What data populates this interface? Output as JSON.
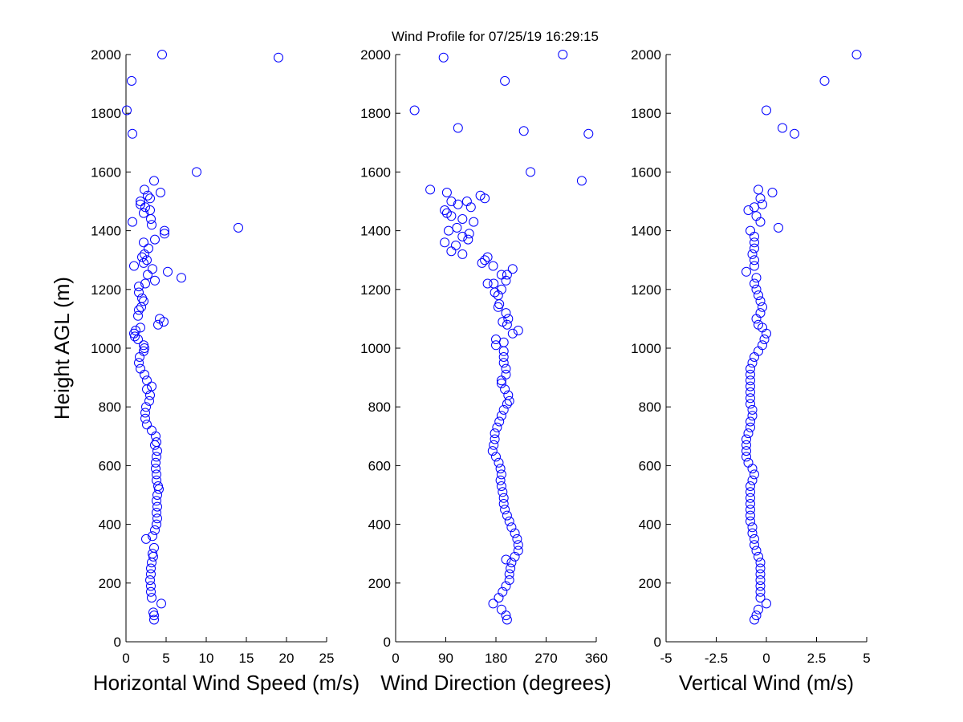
{
  "title": "Wind Profile for  07/25/19 16:29:15",
  "ylabel": "Height AGL (m)",
  "chart_data": [
    {
      "type": "scatter",
      "name": "horizontal-wind-speed",
      "xlabel": "Horizontal Wind Speed (m/s)",
      "ylabel": "Height AGL (m)",
      "xlim": [
        0,
        25
      ],
      "ylim": [
        0,
        2000
      ],
      "xticks": [
        0,
        5,
        10,
        15,
        20,
        25
      ],
      "xtick_labels": [
        "0",
        "5",
        "10",
        "15",
        "20",
        "25"
      ],
      "yticks": [
        0,
        200,
        400,
        600,
        800,
        1000,
        1200,
        1400,
        1600,
        1800,
        2000
      ],
      "ytick_labels": [
        "0",
        "200",
        "400",
        "600",
        "800",
        "1000",
        "1200",
        "1400",
        "1600",
        "1800",
        "2000"
      ],
      "marker": "open-circle",
      "color": "#0000ff",
      "grid": false,
      "points": [
        [
          3.5,
          75
        ],
        [
          3.5,
          90
        ],
        [
          3.4,
          100
        ],
        [
          4.4,
          130
        ],
        [
          3.2,
          150
        ],
        [
          3.1,
          170
        ],
        [
          3.1,
          190
        ],
        [
          3.0,
          210
        ],
        [
          3.1,
          230
        ],
        [
          3.1,
          250
        ],
        [
          3.2,
          270
        ],
        [
          3.4,
          290
        ],
        [
          3.3,
          300
        ],
        [
          3.5,
          320
        ],
        [
          2.5,
          350
        ],
        [
          3.3,
          360
        ],
        [
          3.6,
          380
        ],
        [
          3.8,
          400
        ],
        [
          3.9,
          420
        ],
        [
          3.8,
          440
        ],
        [
          3.9,
          460
        ],
        [
          3.8,
          480
        ],
        [
          3.9,
          500
        ],
        [
          4.1,
          520
        ],
        [
          4.0,
          530
        ],
        [
          3.8,
          550
        ],
        [
          3.8,
          570
        ],
        [
          3.7,
          590
        ],
        [
          3.7,
          610
        ],
        [
          3.8,
          630
        ],
        [
          3.9,
          650
        ],
        [
          3.6,
          670
        ],
        [
          3.8,
          680
        ],
        [
          3.7,
          700
        ],
        [
          3.2,
          720
        ],
        [
          2.6,
          740
        ],
        [
          2.4,
          760
        ],
        [
          2.4,
          780
        ],
        [
          2.5,
          800
        ],
        [
          2.9,
          820
        ],
        [
          3.0,
          840
        ],
        [
          2.6,
          860
        ],
        [
          3.2,
          870
        ],
        [
          2.6,
          890
        ],
        [
          2.3,
          910
        ],
        [
          1.8,
          930
        ],
        [
          1.6,
          950
        ],
        [
          1.7,
          970
        ],
        [
          2.2,
          990
        ],
        [
          2.3,
          1000
        ],
        [
          2.2,
          1010
        ],
        [
          1.5,
          1030
        ],
        [
          1.1,
          1040
        ],
        [
          1.0,
          1050
        ],
        [
          1.2,
          1060
        ],
        [
          1.8,
          1070
        ],
        [
          4.0,
          1080
        ],
        [
          4.7,
          1090
        ],
        [
          4.2,
          1100
        ],
        [
          1.5,
          1110
        ],
        [
          1.6,
          1130
        ],
        [
          1.9,
          1140
        ],
        [
          2.2,
          1160
        ],
        [
          2.0,
          1170
        ],
        [
          1.6,
          1190
        ],
        [
          1.6,
          1210
        ],
        [
          2.4,
          1220
        ],
        [
          3.6,
          1230
        ],
        [
          6.9,
          1240
        ],
        [
          2.7,
          1250
        ],
        [
          5.2,
          1260
        ],
        [
          3.3,
          1270
        ],
        [
          1.0,
          1280
        ],
        [
          2.2,
          1290
        ],
        [
          2.6,
          1300
        ],
        [
          2.0,
          1310
        ],
        [
          2.3,
          1320
        ],
        [
          2.8,
          1340
        ],
        [
          2.2,
          1360
        ],
        [
          3.6,
          1370
        ],
        [
          4.8,
          1390
        ],
        [
          4.8,
          1400
        ],
        [
          14.0,
          1410
        ],
        [
          3.2,
          1420
        ],
        [
          0.8,
          1430
        ],
        [
          3.1,
          1440
        ],
        [
          2.2,
          1460
        ],
        [
          3.0,
          1470
        ],
        [
          2.4,
          1480
        ],
        [
          1.8,
          1490
        ],
        [
          1.8,
          1500
        ],
        [
          3.0,
          1510
        ],
        [
          2.7,
          1520
        ],
        [
          4.3,
          1530
        ],
        [
          2.3,
          1540
        ],
        [
          3.5,
          1570
        ],
        [
          8.8,
          1600
        ],
        [
          0.8,
          1730
        ],
        [
          0.1,
          1810
        ],
        [
          0.7,
          1910
        ],
        [
          19.0,
          1990
        ],
        [
          4.5,
          2000
        ]
      ]
    },
    {
      "type": "scatter",
      "name": "wind-direction",
      "xlabel": "Wind Direction (degrees)",
      "ylabel": "",
      "xlim": [
        0,
        360
      ],
      "ylim": [
        0,
        2000
      ],
      "xticks": [
        0,
        90,
        180,
        270,
        360
      ],
      "xtick_labels": [
        "0",
        "90",
        "180",
        "270",
        "360"
      ],
      "yticks": [
        0,
        200,
        400,
        600,
        800,
        1000,
        1200,
        1400,
        1600,
        1800,
        2000
      ],
      "ytick_labels": [
        "0",
        "200",
        "400",
        "600",
        "800",
        "1000",
        "1200",
        "1400",
        "1600",
        "1800",
        "2000"
      ],
      "marker": "open-circle",
      "color": "#0000ff",
      "grid": false,
      "points": [
        [
          200,
          75
        ],
        [
          198,
          90
        ],
        [
          190,
          110
        ],
        [
          175,
          130
        ],
        [
          185,
          150
        ],
        [
          192,
          170
        ],
        [
          198,
          190
        ],
        [
          204,
          210
        ],
        [
          204,
          230
        ],
        [
          206,
          250
        ],
        [
          208,
          270
        ],
        [
          198,
          280
        ],
        [
          214,
          290
        ],
        [
          220,
          310
        ],
        [
          220,
          330
        ],
        [
          218,
          350
        ],
        [
          214,
          370
        ],
        [
          208,
          390
        ],
        [
          204,
          410
        ],
        [
          200,
          430
        ],
        [
          196,
          450
        ],
        [
          194,
          470
        ],
        [
          194,
          490
        ],
        [
          192,
          510
        ],
        [
          190,
          530
        ],
        [
          188,
          550
        ],
        [
          190,
          570
        ],
        [
          188,
          590
        ],
        [
          185,
          610
        ],
        [
          180,
          630
        ],
        [
          174,
          650
        ],
        [
          176,
          670
        ],
        [
          178,
          690
        ],
        [
          178,
          710
        ],
        [
          182,
          730
        ],
        [
          186,
          750
        ],
        [
          190,
          770
        ],
        [
          194,
          790
        ],
        [
          200,
          810
        ],
        [
          204,
          820
        ],
        [
          202,
          840
        ],
        [
          196,
          860
        ],
        [
          190,
          880
        ],
        [
          190,
          890
        ],
        [
          198,
          910
        ],
        [
          198,
          930
        ],
        [
          194,
          950
        ],
        [
          194,
          970
        ],
        [
          194,
          990
        ],
        [
          180,
          1010
        ],
        [
          194,
          1020
        ],
        [
          180,
          1030
        ],
        [
          210,
          1050
        ],
        [
          220,
          1060
        ],
        [
          200,
          1080
        ],
        [
          192,
          1090
        ],
        [
          202,
          1100
        ],
        [
          198,
          1120
        ],
        [
          184,
          1140
        ],
        [
          186,
          1150
        ],
        [
          184,
          1180
        ],
        [
          178,
          1190
        ],
        [
          190,
          1200
        ],
        [
          176,
          1220
        ],
        [
          165,
          1220
        ],
        [
          198,
          1230
        ],
        [
          190,
          1250
        ],
        [
          200,
          1250
        ],
        [
          210,
          1270
        ],
        [
          175,
          1280
        ],
        [
          155,
          1290
        ],
        [
          160,
          1300
        ],
        [
          165,
          1310
        ],
        [
          120,
          1320
        ],
        [
          100,
          1330
        ],
        [
          108,
          1350
        ],
        [
          88,
          1360
        ],
        [
          130,
          1370
        ],
        [
          120,
          1380
        ],
        [
          132,
          1390
        ],
        [
          95,
          1400
        ],
        [
          110,
          1410
        ],
        [
          140,
          1430
        ],
        [
          120,
          1440
        ],
        [
          100,
          1450
        ],
        [
          92,
          1460
        ],
        [
          88,
          1470
        ],
        [
          135,
          1480
        ],
        [
          112,
          1490
        ],
        [
          100,
          1500
        ],
        [
          128,
          1500
        ],
        [
          160,
          1510
        ],
        [
          152,
          1520
        ],
        [
          92,
          1530
        ],
        [
          62,
          1540
        ],
        [
          334,
          1570
        ],
        [
          242,
          1600
        ],
        [
          346,
          1730
        ],
        [
          230,
          1740
        ],
        [
          112,
          1750
        ],
        [
          34,
          1810
        ],
        [
          196,
          1910
        ],
        [
          86,
          1990
        ],
        [
          300,
          2000
        ]
      ]
    },
    {
      "type": "scatter",
      "name": "vertical-wind",
      "xlabel": "Vertical Wind (m/s)",
      "ylabel": "",
      "xlim": [
        -5,
        5
      ],
      "ylim": [
        0,
        2000
      ],
      "xticks": [
        -5,
        -2.5,
        0,
        2.5,
        5
      ],
      "xtick_labels": [
        "-5",
        "-2.5",
        "0",
        "2.5",
        "5"
      ],
      "yticks": [
        0,
        200,
        400,
        600,
        800,
        1000,
        1200,
        1400,
        1600,
        1800,
        2000
      ],
      "ytick_labels": [
        "0",
        "200",
        "400",
        "600",
        "800",
        "1000",
        "1200",
        "1400",
        "1600",
        "1800",
        "2000"
      ],
      "marker": "open-circle",
      "color": "#0000ff",
      "grid": false,
      "points": [
        [
          -0.6,
          75
        ],
        [
          -0.5,
          90
        ],
        [
          -0.4,
          110
        ],
        [
          0.0,
          130
        ],
        [
          -0.3,
          150
        ],
        [
          -0.3,
          170
        ],
        [
          -0.3,
          190
        ],
        [
          -0.3,
          210
        ],
        [
          -0.3,
          230
        ],
        [
          -0.3,
          250
        ],
        [
          -0.3,
          270
        ],
        [
          -0.4,
          290
        ],
        [
          -0.5,
          310
        ],
        [
          -0.6,
          330
        ],
        [
          -0.6,
          350
        ],
        [
          -0.7,
          370
        ],
        [
          -0.7,
          390
        ],
        [
          -0.8,
          410
        ],
        [
          -0.8,
          430
        ],
        [
          -0.8,
          450
        ],
        [
          -0.8,
          470
        ],
        [
          -0.8,
          490
        ],
        [
          -0.8,
          510
        ],
        [
          -0.8,
          530
        ],
        [
          -0.7,
          550
        ],
        [
          -0.6,
          570
        ],
        [
          -0.7,
          590
        ],
        [
          -0.9,
          610
        ],
        [
          -1.0,
          630
        ],
        [
          -1.0,
          650
        ],
        [
          -1.0,
          670
        ],
        [
          -1.0,
          690
        ],
        [
          -0.9,
          710
        ],
        [
          -0.8,
          730
        ],
        [
          -0.8,
          750
        ],
        [
          -0.7,
          770
        ],
        [
          -0.7,
          790
        ],
        [
          -0.8,
          810
        ],
        [
          -0.8,
          830
        ],
        [
          -0.8,
          850
        ],
        [
          -0.8,
          870
        ],
        [
          -0.8,
          890
        ],
        [
          -0.8,
          910
        ],
        [
          -0.8,
          930
        ],
        [
          -0.7,
          950
        ],
        [
          -0.6,
          970
        ],
        [
          -0.4,
          990
        ],
        [
          -0.2,
          1010
        ],
        [
          -0.1,
          1030
        ],
        [
          0.0,
          1050
        ],
        [
          -0.2,
          1070
        ],
        [
          -0.4,
          1080
        ],
        [
          -0.5,
          1100
        ],
        [
          -0.3,
          1120
        ],
        [
          -0.2,
          1140
        ],
        [
          -0.3,
          1160
        ],
        [
          -0.4,
          1180
        ],
        [
          -0.5,
          1200
        ],
        [
          -0.6,
          1220
        ],
        [
          -0.5,
          1240
        ],
        [
          -1.0,
          1260
        ],
        [
          -0.6,
          1280
        ],
        [
          -0.6,
          1300
        ],
        [
          -0.7,
          1320
        ],
        [
          -0.6,
          1340
        ],
        [
          -0.6,
          1360
        ],
        [
          -0.6,
          1380
        ],
        [
          -0.8,
          1400
        ],
        [
          0.6,
          1410
        ],
        [
          -0.3,
          1430
        ],
        [
          -0.5,
          1450
        ],
        [
          -0.9,
          1470
        ],
        [
          -0.6,
          1480
        ],
        [
          -0.2,
          1490
        ],
        [
          -0.3,
          1510
        ],
        [
          0.3,
          1530
        ],
        [
          -0.4,
          1540
        ],
        [
          1.4,
          1730
        ],
        [
          0.8,
          1750
        ],
        [
          0.0,
          1810
        ],
        [
          2.9,
          1910
        ],
        [
          4.5,
          2000
        ]
      ]
    }
  ]
}
